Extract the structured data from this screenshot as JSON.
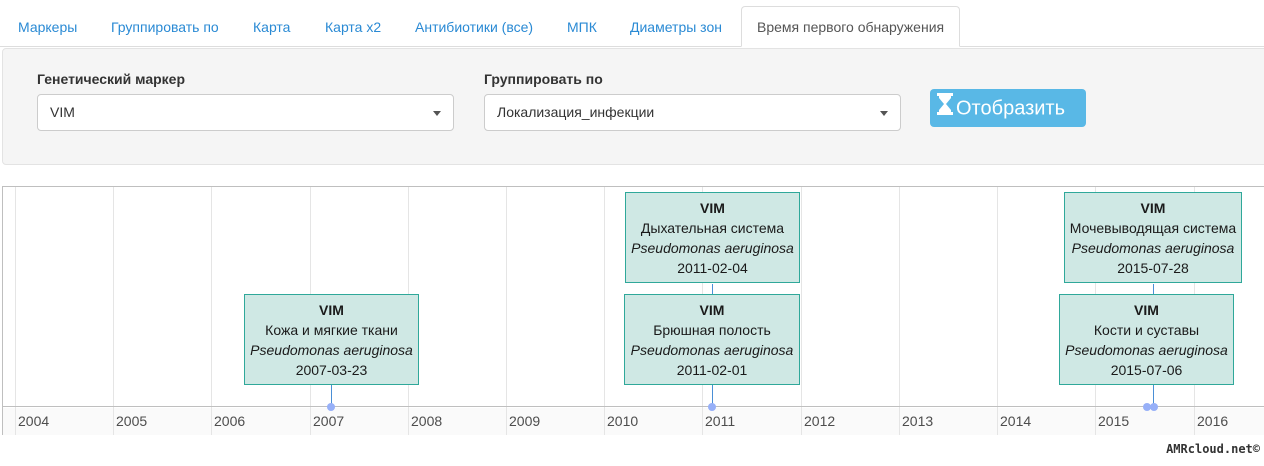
{
  "tabs": [
    {
      "label": "Маркеры"
    },
    {
      "label": "Группировать по"
    },
    {
      "label": "Карта"
    },
    {
      "label": "Карта x2"
    },
    {
      "label": "Антибиотики (все)"
    },
    {
      "label": "МПК"
    },
    {
      "label": "Диаметры зон"
    },
    {
      "label": "Время первого обнаружения"
    }
  ],
  "controls": {
    "marker_label": "Генетический маркер",
    "marker_value": "VIM",
    "group_label": "Группировать по",
    "group_value": "Локализация_инфекции",
    "submit_label": "Отобразить",
    "submit_icon": "hourglass-icon"
  },
  "timeline": {
    "years": [
      "2004",
      "2005",
      "2006",
      "2007",
      "2008",
      "2009",
      "2010",
      "2011",
      "2012",
      "2013",
      "2014",
      "2015",
      "2016"
    ],
    "events": [
      {
        "marker": "VIM",
        "site": "Кожа и мягкие ткани",
        "organism": "Pseudomonas aeruginosa",
        "date": "2007-03-23"
      },
      {
        "marker": "VIM",
        "site": "Дыхательная система",
        "organism": "Pseudomonas aeruginosa",
        "date": "2011-02-04"
      },
      {
        "marker": "VIM",
        "site": "Брюшная полость",
        "organism": "Pseudomonas aeruginosa",
        "date": "2011-02-01"
      },
      {
        "marker": "VIM",
        "site": "Мочевыводящая система",
        "organism": "Pseudomonas aeruginosa",
        "date": "2015-07-28"
      },
      {
        "marker": "VIM",
        "site": "Кости и суставы",
        "organism": "Pseudomonas aeruginosa",
        "date": "2015-07-06"
      }
    ]
  },
  "footer": {
    "text": "AMRcloud.net©"
  },
  "colors": {
    "link": "#2a8ad4",
    "button": "#59b8e6",
    "event_fill": "#cfe8e4",
    "event_border": "#2fa89a",
    "dot": "#97b0f8"
  }
}
